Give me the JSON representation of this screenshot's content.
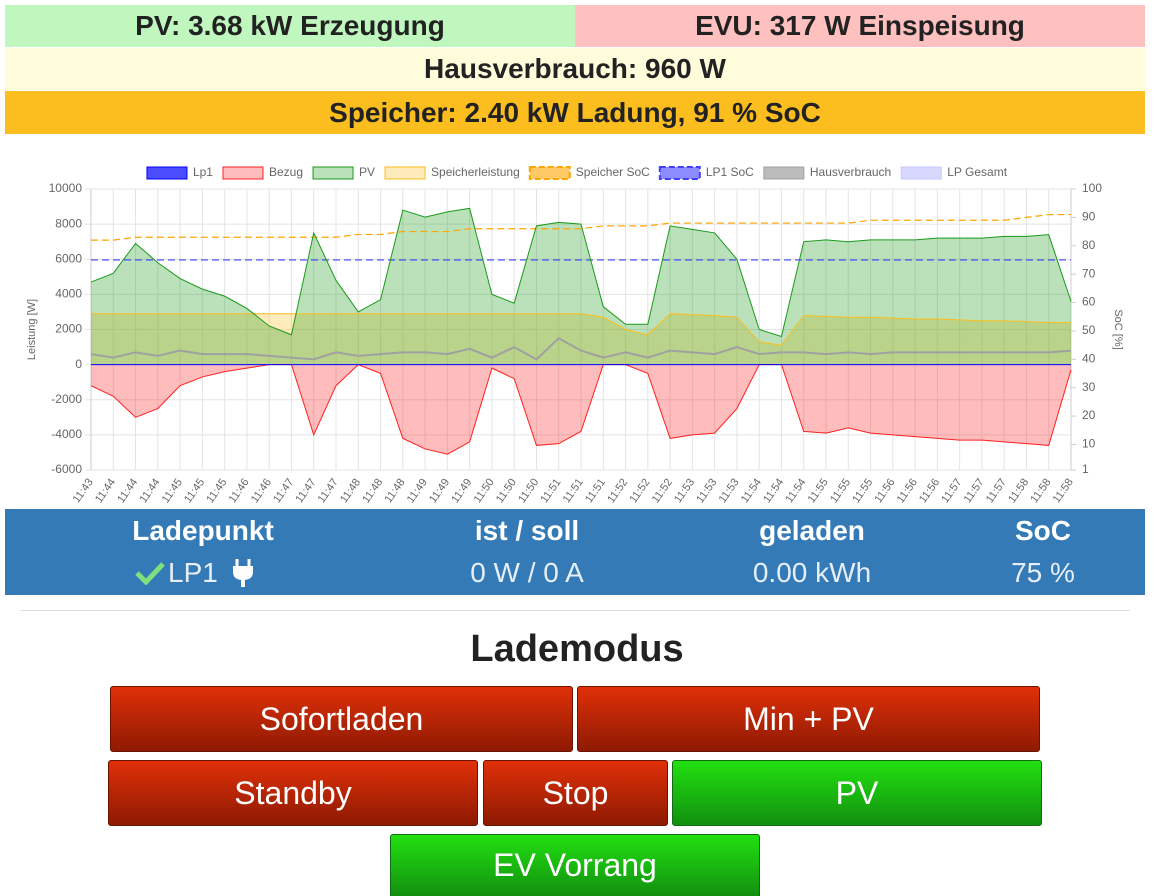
{
  "status": {
    "pv": "PV: 3.68 kW Erzeugung",
    "evu": "EVU: 317 W Einspeisung",
    "house": "Hausverbrauch: 960 W",
    "storage": "Speicher: 2.40 kW Ladung, 91 % SoC"
  },
  "chart_data": {
    "type": "line",
    "y_label": "Leistung [W]",
    "y2_label": "SoC [%]",
    "categories": [
      "11:43",
      "11:44",
      "11:44",
      "11:44",
      "11:45",
      "11:45",
      "11:45",
      "11:46",
      "11:46",
      "11:47",
      "11:47",
      "11:47",
      "11:48",
      "11:48",
      "11:48",
      "11:49",
      "11:49",
      "11:49",
      "11:50",
      "11:50",
      "11:50",
      "11:51",
      "11:51",
      "11:51",
      "11:52",
      "11:52",
      "11:52",
      "11:53",
      "11:53",
      "11:53",
      "11:54",
      "11:54",
      "11:54",
      "11:55",
      "11:55",
      "11:55",
      "11:56",
      "11:56",
      "11:56",
      "11:57",
      "11:57",
      "11:57",
      "11:58",
      "11:58",
      "11:58"
    ],
    "ylim": [
      -6000,
      10000
    ],
    "yticks": [
      -6000,
      -4000,
      -2000,
      0,
      2000,
      4000,
      6000,
      8000,
      10000
    ],
    "y2lim": [
      1,
      100
    ],
    "y2ticks": [
      1,
      10,
      20,
      30,
      40,
      50,
      60,
      70,
      80,
      90,
      100
    ],
    "grid": true,
    "legend": "top",
    "series": [
      {
        "name": "Lp1",
        "color": "#0000ff",
        "fill": false,
        "dash": false,
        "values": [
          0,
          0,
          0,
          0,
          0,
          0,
          0,
          0,
          0,
          0,
          0,
          0,
          0,
          0,
          0,
          0,
          0,
          0,
          0,
          0,
          0,
          0,
          0,
          0,
          0,
          0,
          0,
          0,
          0,
          0,
          0,
          0,
          0,
          0,
          0,
          0,
          0,
          0,
          0,
          0,
          0,
          0,
          0,
          0,
          0
        ]
      },
      {
        "name": "Bezug",
        "color": "#ff2020",
        "fill": true,
        "dash": false,
        "values": [
          -1200,
          -1800,
          -3000,
          -2500,
          -1200,
          -700,
          -400,
          -200,
          0,
          0,
          -4000,
          -1200,
          0,
          -500,
          -4200,
          -4800,
          -5100,
          -4400,
          -200,
          -800,
          -4600,
          -4500,
          -3800,
          0,
          0,
          -500,
          -4200,
          -4000,
          -3900,
          -2500,
          0,
          0,
          -3800,
          -3900,
          -3600,
          -3900,
          -4000,
          -4100,
          -4200,
          -4300,
          -4300,
          -4400,
          -4500,
          -4600,
          -300
        ]
      },
      {
        "name": "PV",
        "color": "#1a9a1a",
        "fill": true,
        "dash": false,
        "values": [
          4700,
          5200,
          6900,
          5800,
          4900,
          4300,
          3900,
          3200,
          2200,
          1700,
          7500,
          4800,
          3000,
          3700,
          8800,
          8400,
          8700,
          8900,
          4000,
          3500,
          7900,
          8100,
          8000,
          3300,
          2300,
          2300,
          7900,
          7700,
          7500,
          6000,
          2000,
          1600,
          7000,
          7100,
          7000,
          7100,
          7100,
          7100,
          7200,
          7200,
          7200,
          7300,
          7300,
          7400,
          3600
        ]
      },
      {
        "name": "Speicherleistung",
        "color": "#fcbe1e",
        "fill": true,
        "dash": false,
        "values": [
          2900,
          2900,
          2900,
          2900,
          2900,
          2900,
          2900,
          2900,
          2900,
          2900,
          2900,
          2900,
          2900,
          2900,
          2900,
          2900,
          2900,
          2900,
          2900,
          2900,
          2900,
          2900,
          2900,
          2700,
          2000,
          1700,
          2900,
          2850,
          2800,
          2700,
          1300,
          1100,
          2800,
          2750,
          2700,
          2700,
          2650,
          2600,
          2600,
          2550,
          2500,
          2500,
          2450,
          2400,
          2400
        ]
      },
      {
        "name": "Speicher SoC",
        "color": "#ffa500",
        "fill": false,
        "dash": true,
        "axis": "y2",
        "values": [
          82,
          82,
          83,
          83,
          83,
          83,
          83,
          83,
          83,
          83,
          83,
          83,
          84,
          84,
          85,
          85,
          85,
          86,
          86,
          86,
          86,
          86,
          86,
          87,
          87,
          87,
          88,
          88,
          88,
          88,
          88,
          88,
          88,
          88,
          88,
          89,
          89,
          89,
          89,
          89,
          89,
          89,
          90,
          91,
          91
        ]
      },
      {
        "name": "LP1 SoC",
        "color": "#4040ff",
        "fill": false,
        "dash": true,
        "axis": "y2",
        "values": [
          75,
          75,
          75,
          75,
          75,
          75,
          75,
          75,
          75,
          75,
          75,
          75,
          75,
          75,
          75,
          75,
          75,
          75,
          75,
          75,
          75,
          75,
          75,
          75,
          75,
          75,
          75,
          75,
          75,
          75,
          75,
          75,
          75,
          75,
          75,
          75,
          75,
          75,
          75,
          75,
          75,
          75,
          75,
          75,
          75
        ]
      },
      {
        "name": "Hausverbrauch",
        "color": "#a0a0a0",
        "fill": false,
        "dash": false,
        "values": [
          600,
          400,
          700,
          500,
          800,
          600,
          600,
          600,
          500,
          400,
          300,
          700,
          500,
          600,
          700,
          700,
          600,
          900,
          400,
          1000,
          300,
          1500,
          800,
          400,
          700,
          400,
          800,
          700,
          600,
          1000,
          600,
          700,
          700,
          600,
          700,
          600,
          700,
          700,
          700,
          700,
          700,
          700,
          700,
          700,
          800
        ]
      },
      {
        "name": "LP Gesamt",
        "color": "#c8c8ff",
        "fill": false,
        "dash": false,
        "values": [
          0,
          0,
          0,
          0,
          0,
          0,
          0,
          0,
          0,
          0,
          0,
          0,
          0,
          0,
          0,
          0,
          0,
          0,
          0,
          0,
          0,
          0,
          0,
          0,
          0,
          0,
          0,
          0,
          0,
          0,
          0,
          0,
          0,
          0,
          0,
          0,
          0,
          0,
          0,
          0,
          0,
          0,
          0,
          0,
          0
        ]
      }
    ]
  },
  "chargepoints": {
    "headers": [
      "Ladepunkt",
      "ist / soll",
      "geladen",
      "SoC"
    ],
    "rows": [
      [
        "LP1",
        "0 W / 0 A",
        "0.00 kWh",
        "75 %"
      ]
    ]
  },
  "mode": {
    "title": "Lademodus",
    "buttons": [
      "Sofortladen",
      "Min + PV",
      "Standby",
      "Stop",
      "PV",
      "EV Vorrang"
    ]
  }
}
